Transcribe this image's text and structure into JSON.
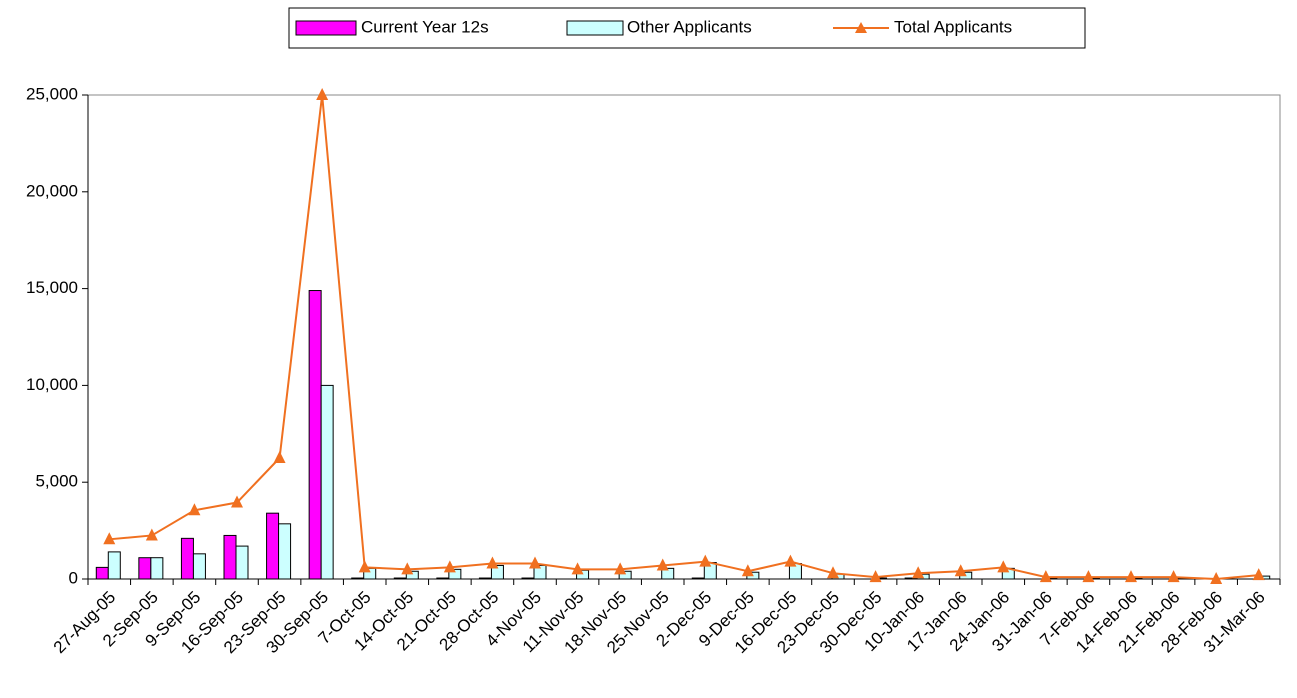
{
  "chart_data": {
    "type": "bar_line",
    "categories": [
      "27-Aug-05",
      "2-Sep-05",
      "9-Sep-05",
      "16-Sep-05",
      "23-Sep-05",
      "30-Sep-05",
      "7-Oct-05",
      "14-Oct-05",
      "21-Oct-05",
      "28-Oct-05",
      "4-Nov-05",
      "11-Nov-05",
      "18-Nov-05",
      "25-Nov-05",
      "2-Dec-05",
      "9-Dec-05",
      "16-Dec-05",
      "23-Dec-05",
      "30-Dec-05",
      "10-Jan-06",
      "17-Jan-06",
      "24-Jan-06",
      "31-Jan-06",
      "7-Feb-06",
      "14-Feb-06",
      "21-Feb-06",
      "28-Feb-06",
      "31-Mar-06"
    ],
    "series": [
      {
        "name": "Current Year 12s",
        "type": "bar",
        "color": "#ff00ff",
        "values": [
          600,
          1100,
          2100,
          2250,
          3400,
          14900,
          50,
          50,
          50,
          50,
          50,
          0,
          0,
          0,
          50,
          0,
          0,
          0,
          0,
          50,
          0,
          0,
          0,
          0,
          0,
          0,
          0,
          0
        ]
      },
      {
        "name": "Other Applicants",
        "type": "bar",
        "color": "#ccffff",
        "values": [
          1400,
          1100,
          1300,
          1700,
          2850,
          10000,
          550,
          400,
          500,
          700,
          700,
          450,
          400,
          550,
          850,
          350,
          800,
          250,
          50,
          250,
          350,
          550,
          50,
          50,
          50,
          50,
          0,
          150
        ]
      },
      {
        "name": "Total Applicants",
        "type": "line",
        "color": "#f07020",
        "values": [
          2050,
          2250,
          3550,
          3950,
          6250,
          25000,
          600,
          500,
          600,
          800,
          800,
          500,
          500,
          700,
          900,
          400,
          900,
          300,
          100,
          300,
          400,
          600,
          100,
          100,
          100,
          100,
          0,
          200
        ]
      }
    ],
    "ylim": [
      0,
      25000
    ],
    "yticks": [
      0,
      {
        "value": 5000,
        "label": "5,000"
      },
      {
        "value": 10000,
        "label": "10,000"
      },
      {
        "value": 15000,
        "label": "15,000"
      },
      {
        "value": 20000,
        "label": "20,000"
      },
      {
        "value": 25000,
        "label": "25,000"
      }
    ],
    "grid": false,
    "legend": "top"
  }
}
